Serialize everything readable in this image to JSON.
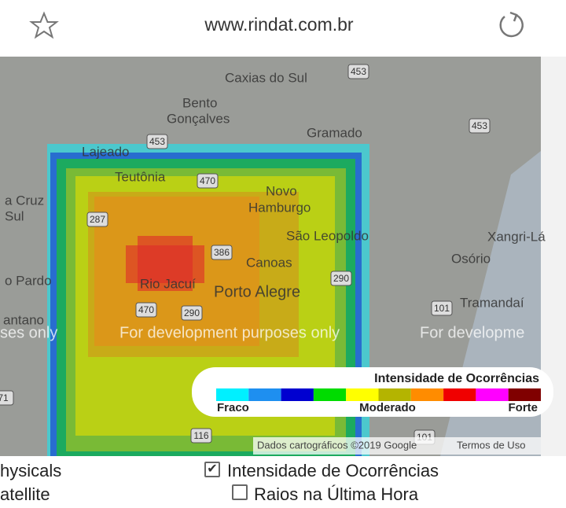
{
  "browser": {
    "url": "www.rindat.com.br"
  },
  "map": {
    "labels": [
      "Caxias do Sul",
      "Bento",
      "Gonçalves",
      "Gramado",
      "Lajeado",
      "Teutônia",
      "Novo",
      "Hamburgo",
      "São Leopoldo",
      "Canoas",
      "Porto Alegre",
      "Rio Jacuí",
      "a Cruz",
      "Sul",
      "o Pardo",
      "antano",
      "Osório",
      "Tramandaí",
      "Xangri-Lá"
    ],
    "roads": [
      "453",
      "453",
      "453",
      "470",
      "287",
      "386",
      "290",
      "470",
      "290",
      "101",
      "116",
      "101",
      "71"
    ],
    "watermarks": [
      "ses only",
      "For development purposes only",
      "For developme"
    ],
    "legend": {
      "title": "Intensidade de Ocorrências",
      "low": "Fraco",
      "mid": "Moderado",
      "high": "Forte"
    },
    "attribution": "Dados cartográficos ©2019 Google",
    "terms": "Termos de Uso"
  },
  "controls": {
    "left": [
      "hysicals",
      "atellite"
    ],
    "checkboxes": [
      {
        "label": "Intensidade de Ocorrências",
        "checked": true
      },
      {
        "label": "Raios na Última Hora",
        "checked": false
      }
    ]
  }
}
